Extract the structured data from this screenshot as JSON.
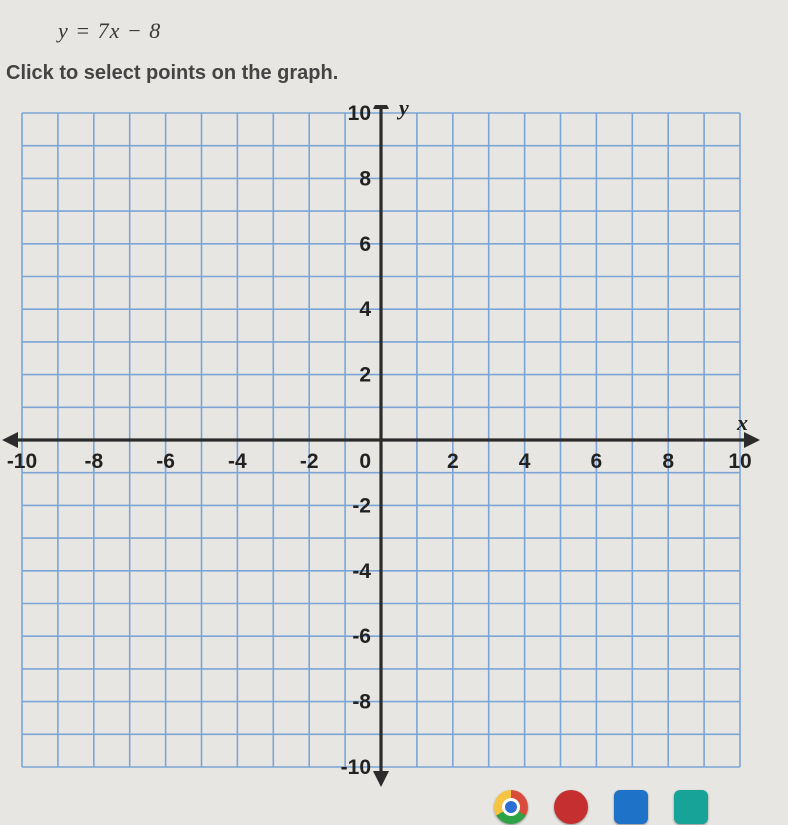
{
  "equation": "y = 7x − 8",
  "instruction": "Click to select points on the graph.",
  "graph": {
    "type": "coordinate-grid",
    "xlim": [
      -10,
      10
    ],
    "ylim": [
      -10,
      10
    ],
    "x_tick_step": 2,
    "y_tick_step": 2,
    "grid_step": 1,
    "x_ticks": [
      -10,
      -8,
      -6,
      -4,
      -2,
      0,
      2,
      4,
      6,
      8,
      10
    ],
    "y_ticks": [
      10,
      8,
      6,
      4,
      2,
      -2,
      -4,
      -6,
      -8,
      -10
    ],
    "x_axis_label": "x",
    "y_axis_label": "y",
    "grid_color": "#7aa5d6",
    "axis_color": "#2c2c2c",
    "background_color": "#e8e6e2",
    "label_fontsize": 21,
    "axis_label_fontsize": 22
  },
  "taskbar": {
    "icons": [
      {
        "name": "chrome",
        "colors": [
          "#d33",
          "#fb0",
          "#3a3"
        ]
      },
      {
        "name": "app-red",
        "colors": [
          "#c52f2f"
        ]
      },
      {
        "name": "app-blue",
        "colors": [
          "#1e73c9"
        ]
      },
      {
        "name": "app-teal",
        "colors": [
          "#17a398"
        ]
      }
    ]
  }
}
